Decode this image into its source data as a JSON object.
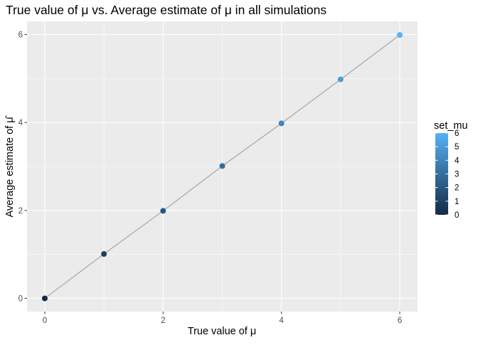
{
  "chart_data": {
    "type": "scatter",
    "title": "True value of μ vs. Average estimate of μ in all simulations",
    "xlabel": "True value of μ",
    "ylabel": "Average estimate of μ̂",
    "xlim": [
      -0.3,
      6.3
    ],
    "ylim": [
      -0.3,
      6.3
    ],
    "x_ticks": [
      0,
      2,
      4,
      6
    ],
    "y_ticks": [
      0,
      2,
      4,
      6
    ],
    "x_tick_labels": [
      "0",
      "2",
      "4",
      "6"
    ],
    "y_tick_labels": [
      "0",
      "2",
      "4",
      "6"
    ],
    "grid": true,
    "points": [
      {
        "x": 0,
        "y": 0.0,
        "set_mu": 0
      },
      {
        "x": 1,
        "y": 1.01,
        "set_mu": 1
      },
      {
        "x": 2,
        "y": 1.99,
        "set_mu": 2
      },
      {
        "x": 3,
        "y": 3.01,
        "set_mu": 3
      },
      {
        "x": 4,
        "y": 3.98,
        "set_mu": 4
      },
      {
        "x": 5,
        "y": 4.98,
        "set_mu": 5
      },
      {
        "x": 6,
        "y": 5.99,
        "set_mu": 6
      }
    ],
    "line": {
      "x": [
        0,
        1,
        2,
        3,
        4,
        5,
        6
      ],
      "y": [
        0.0,
        1.01,
        1.99,
        3.01,
        3.98,
        4.98,
        5.99
      ],
      "color": "#a6a6a6"
    },
    "legend": {
      "title": "set_mu",
      "placement": "right",
      "type": "colorbar",
      "range": [
        0,
        6
      ],
      "ticks": [
        0,
        1,
        2,
        3,
        4,
        5,
        6
      ],
      "tick_labels": [
        "0",
        "1",
        "2",
        "3",
        "4",
        "5",
        "6"
      ],
      "low_color": "#132B43",
      "high_color": "#56B1F7"
    },
    "panel_background": "#EBEBEB",
    "grid_color": "#FFFFFF"
  }
}
